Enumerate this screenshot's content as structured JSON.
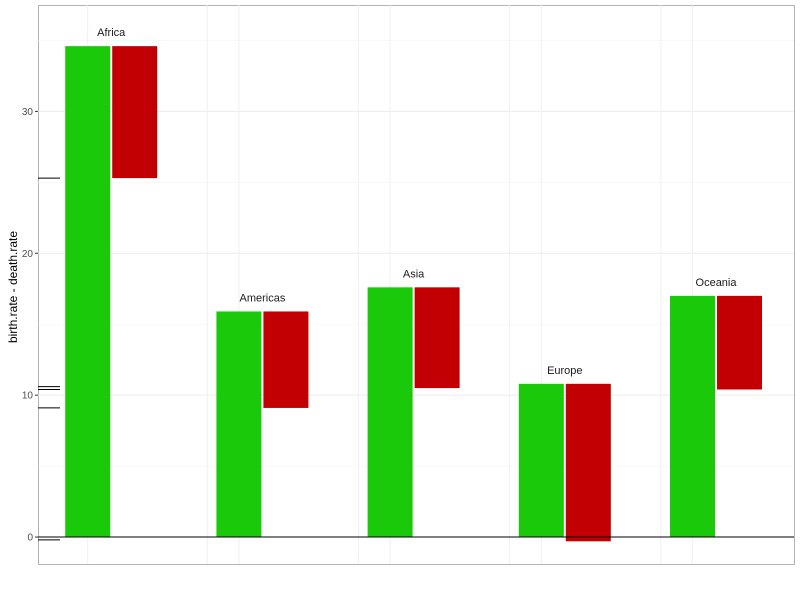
{
  "chart_data": {
    "type": "bar",
    "ylabel": "birth.rate - death.rate",
    "yticks": [
      0,
      10,
      20,
      30
    ],
    "ylim": [
      -1.9,
      37.5
    ],
    "grid": true,
    "regions": [
      {
        "name": "Africa",
        "birth_rate": 34.6,
        "death_rate": 9.3
      },
      {
        "name": "Americas",
        "birth_rate": 15.9,
        "death_rate": 6.8
      },
      {
        "name": "Asia",
        "birth_rate": 17.6,
        "death_rate": 7.1
      },
      {
        "name": "Europe",
        "birth_rate": 10.8,
        "death_rate": 11.1
      },
      {
        "name": "Oceania",
        "birth_rate": 17.0,
        "death_rate": 6.6
      }
    ],
    "y_axis_markers": [
      25.3,
      10.6,
      10.4,
      9.1,
      -0.2
    ],
    "colors": {
      "birth": "#1aca0a",
      "death": "#c20003",
      "zero_line": "#000000"
    }
  }
}
